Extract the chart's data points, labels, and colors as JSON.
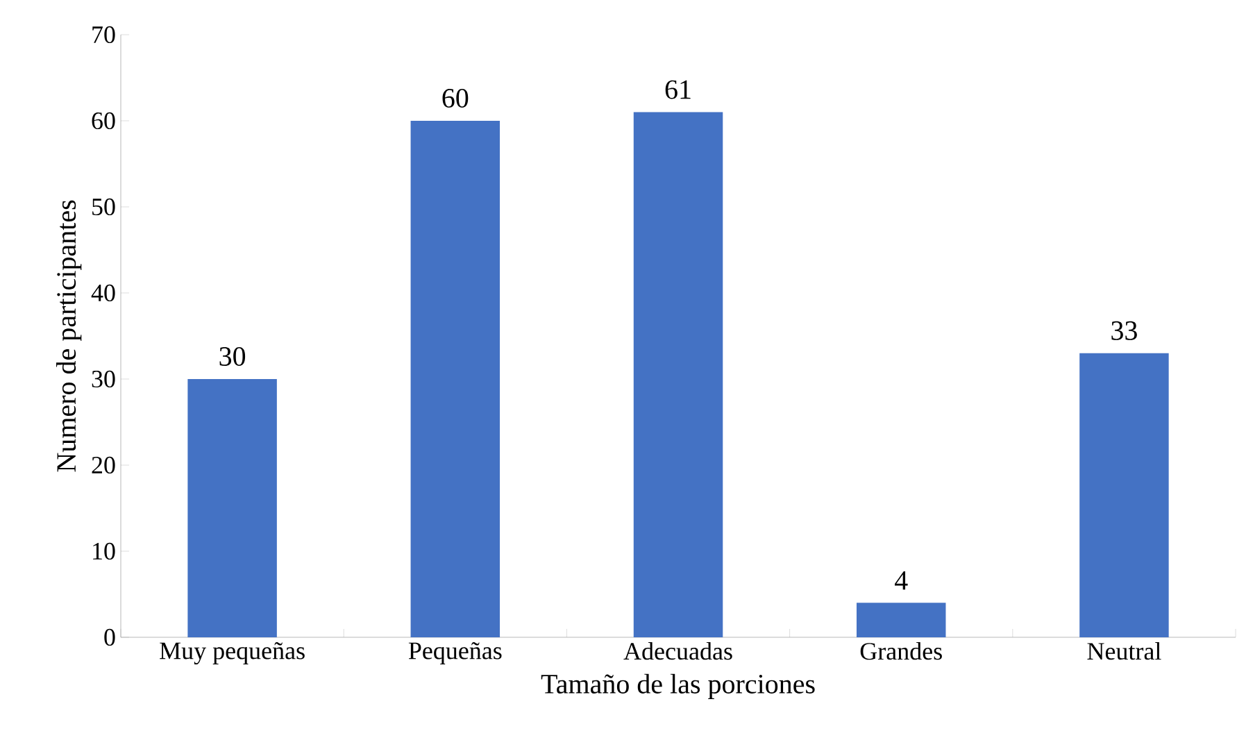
{
  "chart_data": {
    "type": "bar",
    "xlabel": "Tamaño de las porciones",
    "ylabel": "Numero de participantes",
    "categories": [
      "Muy pequeñas",
      "Pequeñas",
      "Adecuadas",
      "Grandes",
      "Neutral"
    ],
    "values": [
      30,
      60,
      61,
      4,
      33
    ],
    "color": "#4472c4",
    "ylim": [
      0,
      70
    ],
    "yticks": [
      0,
      10,
      20,
      30,
      40,
      50,
      60,
      70
    ],
    "grid": false,
    "data_labels": true
  }
}
